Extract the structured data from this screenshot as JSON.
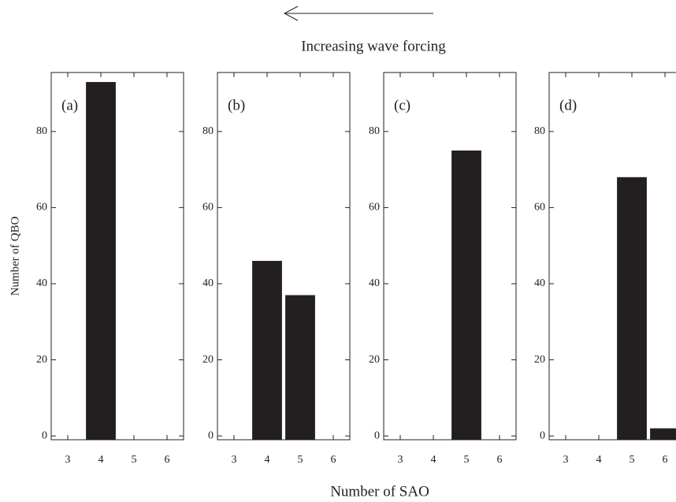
{
  "title": "Increasing wave forcing",
  "xlabel": "Number of SAO",
  "ylabel": "Number of QBO",
  "chart_data": [
    {
      "type": "bar",
      "annotation": "(a)",
      "x": [
        4
      ],
      "values": [
        93
      ],
      "color": "#231f20",
      "xlim": [
        2.5,
        6.5
      ],
      "xticks": [
        3,
        4,
        5,
        6
      ],
      "ylim": [
        -1,
        95.5
      ],
      "yticks": [
        0,
        20,
        40,
        60,
        80
      ],
      "grid": false
    },
    {
      "type": "bar",
      "annotation": "(b)",
      "x": [
        4,
        5
      ],
      "values": [
        46,
        37
      ],
      "color": "#231f20",
      "xlim": [
        2.5,
        6.5
      ],
      "xticks": [
        3,
        4,
        5,
        6
      ],
      "ylim": [
        -1,
        95.5
      ],
      "yticks": [
        0,
        20,
        40,
        60,
        80
      ],
      "grid": false
    },
    {
      "type": "bar",
      "annotation": "(c)",
      "x": [
        5
      ],
      "values": [
        75
      ],
      "color": "#231f20",
      "xlim": [
        2.5,
        6.5
      ],
      "xticks": [
        3,
        4,
        5,
        6
      ],
      "ylim": [
        -1,
        95.5
      ],
      "yticks": [
        0,
        20,
        40,
        60,
        80
      ],
      "grid": false
    },
    {
      "type": "bar",
      "annotation": "(d)",
      "x": [
        5,
        6
      ],
      "values": [
        68,
        2
      ],
      "color": "#231f20",
      "xlim": [
        2.5,
        6.5
      ],
      "xticks": [
        3,
        4,
        5,
        6
      ],
      "ylim": [
        -1,
        95.5
      ],
      "yticks": [
        0,
        20,
        40,
        60,
        80
      ],
      "grid": false
    }
  ]
}
